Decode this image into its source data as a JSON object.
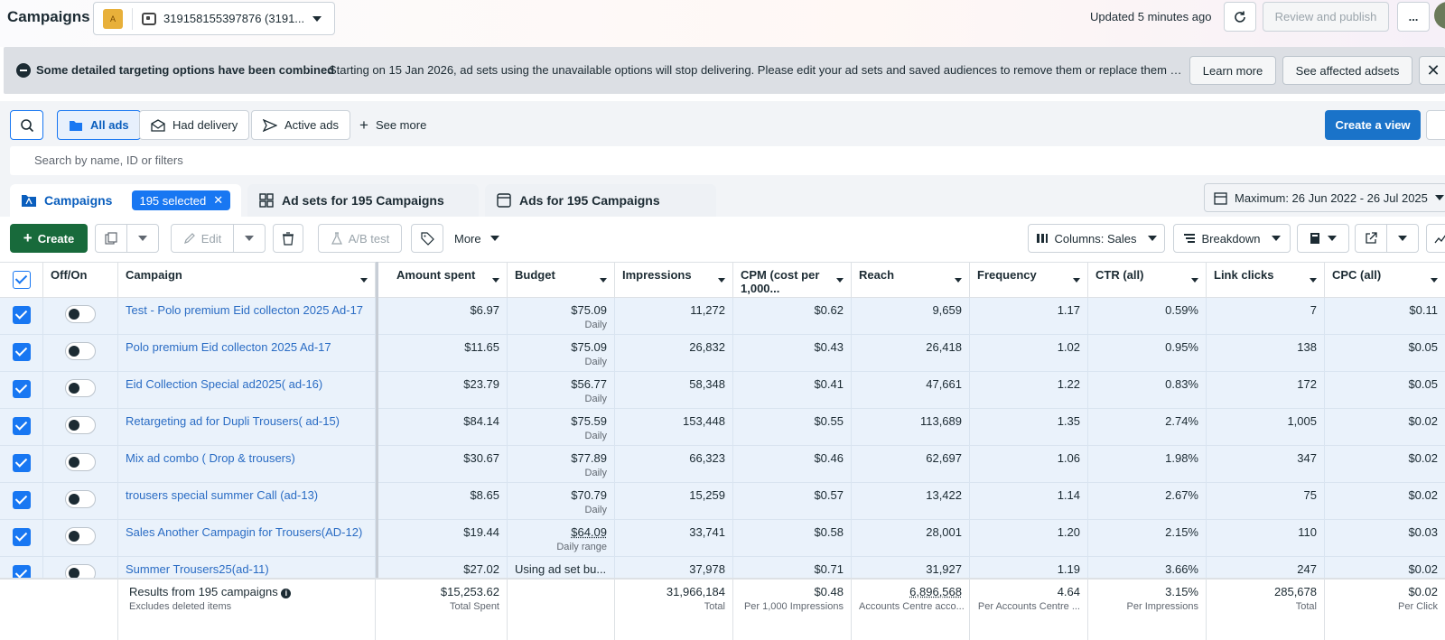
{
  "header": {
    "title": "Campaigns",
    "account_name": "319158155397876 (3191...",
    "account_logo_text": "A",
    "updated": "Updated 5 minutes ago",
    "review_label": "Review and publish",
    "more_label": "..."
  },
  "banner": {
    "title": "Some detailed targeting options have been combined",
    "text": "Starting on 15 Jan 2026, ad sets using the unavailable options will stop delivering. Please edit your ad sets and saved audiences to remove them or replace them wi...",
    "learn_more": "Learn more",
    "see_affected": "See affected adsets"
  },
  "filters": {
    "all_ads": "All ads",
    "had_delivery": "Had delivery",
    "active_ads": "Active ads",
    "see_more": "See more",
    "create_view": "Create a view",
    "search_placeholder": "Search by name, ID or filters"
  },
  "tabs": {
    "campaigns": "Campaigns",
    "selected": "195 selected",
    "adsets": "Ad sets for 195 Campaigns",
    "ads": "Ads for 195 Campaigns",
    "date_range": "Maximum: 26 Jun 2022 - 26 Jul 2025"
  },
  "toolbar": {
    "create": "Create",
    "edit": "Edit",
    "ab_test": "A/B test",
    "more": "More",
    "columns": "Columns: Sales",
    "breakdown": "Breakdown"
  },
  "columns": {
    "offon": "Off/On",
    "campaign": "Campaign",
    "amount": "Amount spent",
    "budget": "Budget",
    "impressions": "Impressions",
    "cpm": "CPM (cost per 1,000...",
    "reach": "Reach",
    "frequency": "Frequency",
    "ctr": "CTR (all)",
    "link_clicks": "Link clicks",
    "cpc": "CPC (all)"
  },
  "rows": [
    {
      "name": "Test - Polo premium Eid collecton 2025 Ad-17",
      "amount": "$6.97",
      "budget": "$75.09",
      "budget_type": "Daily",
      "impressions": "11,272",
      "cpm": "$0.62",
      "reach": "9,659",
      "frequency": "1.17",
      "ctr": "0.59%",
      "clicks": "7",
      "cpc": "$0.11"
    },
    {
      "name": "Polo premium Eid collecton 2025 Ad-17",
      "amount": "$11.65",
      "budget": "$75.09",
      "budget_type": "Daily",
      "impressions": "26,832",
      "cpm": "$0.43",
      "reach": "26,418",
      "frequency": "1.02",
      "ctr": "0.95%",
      "clicks": "138",
      "cpc": "$0.05"
    },
    {
      "name": "Eid Collection Special ad2025( ad-16)",
      "amount": "$23.79",
      "budget": "$56.77",
      "budget_type": "Daily",
      "impressions": "58,348",
      "cpm": "$0.41",
      "reach": "47,661",
      "frequency": "1.22",
      "ctr": "0.83%",
      "clicks": "172",
      "cpc": "$0.05"
    },
    {
      "name": "Retargeting ad for Dupli Trousers( ad-15)",
      "amount": "$84.14",
      "budget": "$75.59",
      "budget_type": "Daily",
      "impressions": "153,448",
      "cpm": "$0.55",
      "reach": "113,689",
      "frequency": "1.35",
      "ctr": "2.74%",
      "clicks": "1,005",
      "cpc": "$0.02"
    },
    {
      "name": "Mix ad combo ( Drop & trousers)",
      "amount": "$30.67",
      "budget": "$77.89",
      "budget_type": "Daily",
      "impressions": "66,323",
      "cpm": "$0.46",
      "reach": "62,697",
      "frequency": "1.06",
      "ctr": "1.98%",
      "clicks": "347",
      "cpc": "$0.02"
    },
    {
      "name": "trousers special summer Call (ad-13)",
      "amount": "$8.65",
      "budget": "$70.79",
      "budget_type": "Daily",
      "impressions": "15,259",
      "cpm": "$0.57",
      "reach": "13,422",
      "frequency": "1.14",
      "ctr": "2.67%",
      "clicks": "75",
      "cpc": "$0.02"
    },
    {
      "name": "Sales Another Campagin for Trousers(AD-12)",
      "amount": "$19.44",
      "budget": "$64.09",
      "budget_type": "Daily range",
      "impressions": "33,741",
      "cpm": "$0.58",
      "reach": "28,001",
      "frequency": "1.20",
      "ctr": "2.15%",
      "clicks": "110",
      "cpc": "$0.03"
    },
    {
      "name": "Summer Trousers25(ad-11)",
      "amount": "$27.02",
      "budget": "Using ad set bu...",
      "budget_type": "",
      "impressions": "37,978",
      "cpm": "$0.71",
      "reach": "31,927",
      "frequency": "1.19",
      "ctr": "3.66%",
      "clicks": "247",
      "cpc": "$0.02"
    }
  ],
  "footer": {
    "results": "Results from 195 campaigns",
    "excludes": "Excludes deleted items",
    "amount": "$15,253.62",
    "amount_sub": "Total Spent",
    "impressions": "31,966,184",
    "impressions_sub": "Total",
    "cpm": "$0.48",
    "cpm_sub": "Per 1,000 Impressions",
    "reach": "6,896,568",
    "reach_sub": "Accounts Centre acco...",
    "frequency": "4.64",
    "frequency_sub": "Per Accounts Centre ...",
    "ctr": "3.15%",
    "ctr_sub": "Per Impressions",
    "clicks": "285,678",
    "clicks_sub": "Total",
    "cpc": "$0.02",
    "cpc_sub": "Per Click"
  }
}
